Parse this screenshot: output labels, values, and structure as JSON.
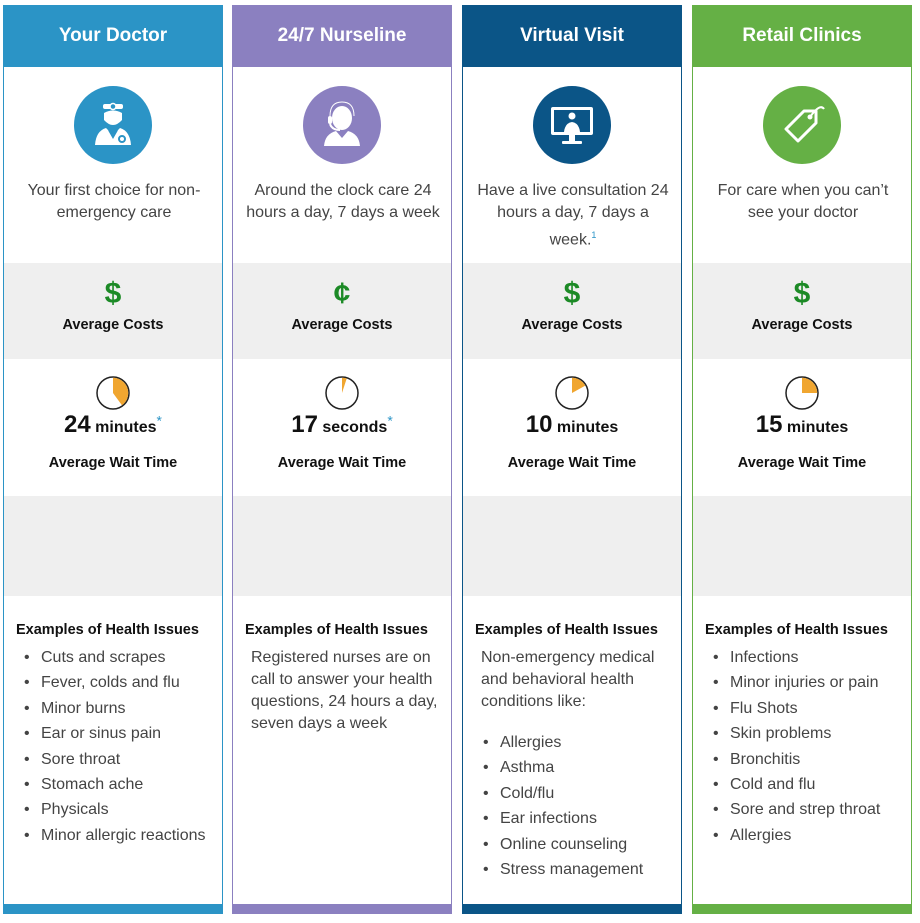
{
  "colors": {
    "doctor": "#2b94c6",
    "nurseline": "#8b80c0",
    "virtual": "#0b5587",
    "retail": "#65b045",
    "cost_green": "#1c8a26",
    "clock_fill": "#f0a630"
  },
  "cost_label": "Average Costs",
  "wait_label": "Average Wait Time",
  "examples_title": "Examples of Health Issues",
  "columns": [
    {
      "title": "Your Doctor",
      "icon": "doctor-icon",
      "description": "Your first choice for non-emergency care",
      "cost_symbol": "$",
      "wait_number": "24",
      "wait_unit": "minutes",
      "wait_mark": "*",
      "wait_fraction": 0.4,
      "examples": [
        "Cuts and scrapes",
        "Fever, colds and flu",
        "Minor burns",
        "Ear or sinus pain",
        "Sore throat",
        "Stomach ache",
        "Physicals",
        "Minor allergic reactions"
      ]
    },
    {
      "title": "24/7 Nurseline",
      "icon": "nurse-headset-icon",
      "description": "Around the clock care 24 hours a day, 7 days a week",
      "cost_symbol": "¢",
      "wait_number": "17",
      "wait_unit": "seconds",
      "wait_mark": "*",
      "wait_fraction": 0.05,
      "examples_intro": "Registered nurses are on call to answer your health questions, 24 hours a day, seven days a week"
    },
    {
      "title": "Virtual Visit",
      "icon": "monitor-doctor-icon",
      "description": "Have a live consultation 24 hours a day, 7 days a week.",
      "description_sup": "1",
      "cost_symbol": "$",
      "wait_number": "10",
      "wait_unit": "minutes",
      "wait_mark": "",
      "wait_fraction": 0.17,
      "examples_intro": "Non-emergency medical and behavioral health conditions like:",
      "examples": [
        "Allergies",
        "Asthma",
        "Cold/flu",
        "Ear infections",
        "Online counseling",
        "Stress management"
      ]
    },
    {
      "title": "Retail Clinics",
      "icon": "price-tag-icon",
      "description": "For care when you can’t see your doctor",
      "cost_symbol": "$",
      "wait_number": "15",
      "wait_unit": "minutes",
      "wait_mark": "",
      "wait_fraction": 0.25,
      "examples": [
        "Infections",
        "Minor injuries or pain",
        "Flu Shots",
        "Skin problems",
        "Bronchitis",
        "Cold and flu",
        "Sore and strep throat",
        "Allergies"
      ]
    }
  ]
}
